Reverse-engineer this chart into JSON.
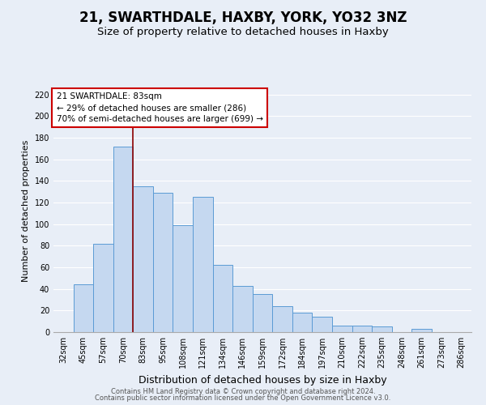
{
  "title1": "21, SWARTHDALE, HAXBY, YORK, YO32 3NZ",
  "title2": "Size of property relative to detached houses in Haxby",
  "xlabel": "Distribution of detached houses by size in Haxby",
  "ylabel": "Number of detached properties",
  "bar_labels": [
    "32sqm",
    "45sqm",
    "57sqm",
    "70sqm",
    "83sqm",
    "95sqm",
    "108sqm",
    "121sqm",
    "134sqm",
    "146sqm",
    "159sqm",
    "172sqm",
    "184sqm",
    "197sqm",
    "210sqm",
    "222sqm",
    "235sqm",
    "248sqm",
    "261sqm",
    "273sqm",
    "286sqm"
  ],
  "bar_values": [
    0,
    44,
    82,
    172,
    135,
    129,
    99,
    125,
    62,
    43,
    35,
    24,
    18,
    14,
    6,
    6,
    5,
    0,
    3,
    0,
    0
  ],
  "bar_color": "#c5d8f0",
  "bar_edge_color": "#5b9bd5",
  "highlight_bar_index": 4,
  "highlight_line_color": "#8b0000",
  "annotation_title": "21 SWARTHDALE: 83sqm",
  "annotation_line1": "← 29% of detached houses are smaller (286)",
  "annotation_line2": "70% of semi-detached houses are larger (699) →",
  "annotation_box_color": "#ffffff",
  "annotation_box_edge_color": "#cc0000",
  "ylim": [
    0,
    225
  ],
  "yticks": [
    0,
    20,
    40,
    60,
    80,
    100,
    120,
    140,
    160,
    180,
    200,
    220
  ],
  "footer1": "Contains HM Land Registry data © Crown copyright and database right 2024.",
  "footer2": "Contains public sector information licensed under the Open Government Licence v3.0.",
  "background_color": "#e8eef7",
  "plot_bg_color": "#e8eef7",
  "grid_color": "#ffffff",
  "title1_fontsize": 12,
  "title2_fontsize": 9.5,
  "xlabel_fontsize": 9,
  "ylabel_fontsize": 8,
  "tick_fontsize": 7,
  "footer_fontsize": 6,
  "ann_fontsize": 7.5
}
